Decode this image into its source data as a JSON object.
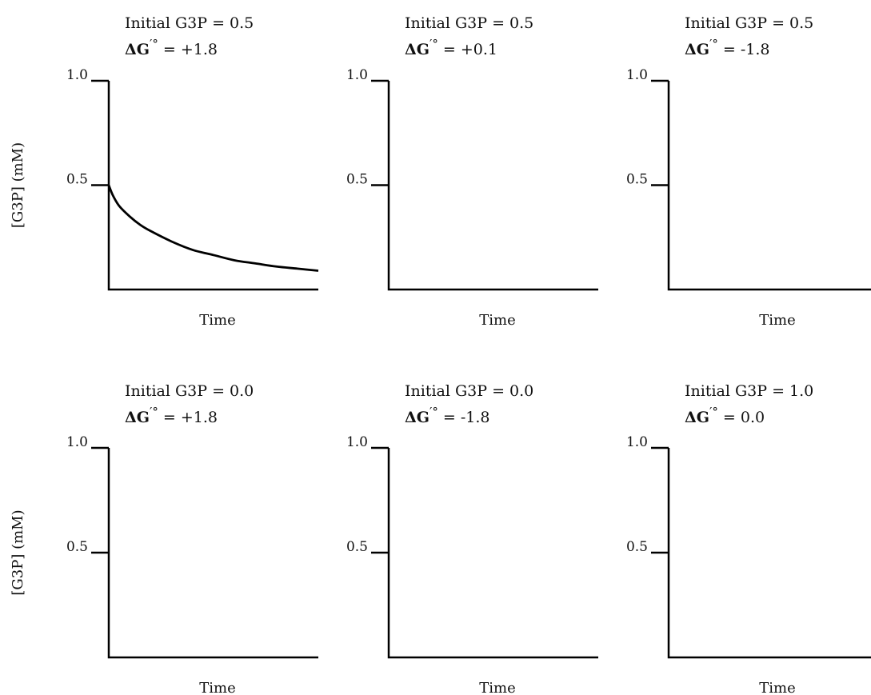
{
  "chart_data": [
    {
      "type": "line",
      "title_line1": "Initial G3P = 0.5",
      "delta_prefix": "ΔG",
      "delta_sup": "′°",
      "delta_value": " = +1.8",
      "xlabel": "Time",
      "ylabel": "[G3P] (mM)",
      "yticks": [
        "1.0",
        "0.5"
      ],
      "ylim": [
        0,
        1.0
      ],
      "xlim": [
        0,
        1.0
      ],
      "series": [
        {
          "x": [
            0,
            0.02,
            0.05,
            0.1,
            0.15,
            0.2,
            0.3,
            0.4,
            0.5,
            0.6,
            0.7,
            0.8,
            0.9,
            1.0
          ],
          "values": [
            0.5,
            0.45,
            0.4,
            0.35,
            0.31,
            0.28,
            0.23,
            0.19,
            0.165,
            0.14,
            0.125,
            0.11,
            0.1,
            0.09
          ]
        }
      ]
    },
    {
      "type": "line",
      "title_line1": "Initial G3P = 0.5",
      "delta_prefix": "ΔG",
      "delta_sup": "′°",
      "delta_value": " = +0.1",
      "xlabel": "Time",
      "ylabel": "",
      "yticks": [
        "1.0",
        "0.5"
      ],
      "ylim": [
        0,
        1.0
      ],
      "xlim": [
        0,
        1.0
      ],
      "series": []
    },
    {
      "type": "line",
      "title_line1": "Initial G3P = 0.5",
      "delta_prefix": "ΔG",
      "delta_sup": "′°",
      "delta_value": " = -1.8",
      "xlabel": "Time",
      "ylabel": "",
      "yticks": [
        "1.0",
        "0.5"
      ],
      "ylim": [
        0,
        1.0
      ],
      "xlim": [
        0,
        1.0
      ],
      "series": []
    },
    {
      "type": "line",
      "title_line1": "Initial G3P = 0.0",
      "delta_prefix": "ΔG",
      "delta_sup": "′°",
      "delta_value": " = +1.8",
      "xlabel": "Time",
      "ylabel": "[G3P] (mM)",
      "yticks": [
        "1.0",
        "0.5"
      ],
      "ylim": [
        0,
        1.0
      ],
      "xlim": [
        0,
        1.0
      ],
      "series": []
    },
    {
      "type": "line",
      "title_line1": "Initial G3P = 0.0",
      "delta_prefix": "ΔG",
      "delta_sup": "′°",
      "delta_value": " = -1.8",
      "xlabel": "Time",
      "ylabel": "",
      "yticks": [
        "1.0",
        "0.5"
      ],
      "ylim": [
        0,
        1.0
      ],
      "xlim": [
        0,
        1.0
      ],
      "series": []
    },
    {
      "type": "line",
      "title_line1": "Initial G3P = 1.0",
      "delta_prefix": "ΔG",
      "delta_sup": "′°",
      "delta_value": " = 0.0",
      "xlabel": "Time",
      "ylabel": "",
      "yticks": [
        "1.0",
        "0.5"
      ],
      "ylim": [
        0,
        1.0
      ],
      "xlim": [
        0,
        1.0
      ],
      "series": []
    }
  ]
}
